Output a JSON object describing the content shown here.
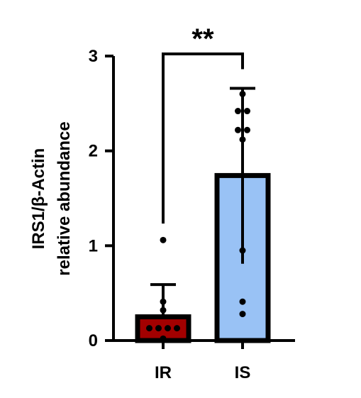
{
  "chart_data": {
    "type": "bar",
    "categories": [
      "IR",
      "IS"
    ],
    "ylabel_lines": [
      "IRS1/β-Actin",
      "relative abundance"
    ],
    "ylim": [
      0,
      3
    ],
    "yticks": [
      0,
      1,
      2,
      3
    ],
    "yticklabels": [
      "0",
      "1",
      "2",
      "3"
    ],
    "grid": false,
    "series": [
      {
        "values": [
          0.25,
          1.74
        ],
        "error_upper": [
          0.59,
          2.66
        ],
        "error_lower": [
          0.25,
          0.81
        ],
        "fill_colors": [
          "#a30000",
          "#99c2f5"
        ],
        "points": [
          [
            1.06,
            0.41,
            0.32,
            0.13,
            0.13,
            0.13,
            0.13,
            0.02
          ],
          [
            2.6,
            2.42,
            2.42,
            2.22,
            2.22,
            2.12,
            0.95,
            0.41,
            0.28
          ]
        ]
      }
    ],
    "significance": {
      "text": "**",
      "between": [
        "IR",
        "IS"
      ]
    }
  }
}
